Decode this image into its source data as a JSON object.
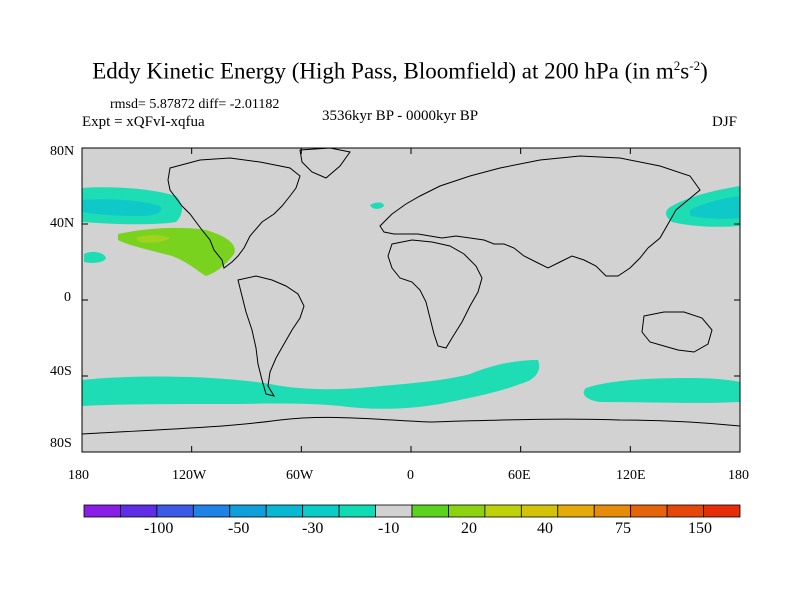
{
  "title": {
    "main": "Eddy Kinetic Energy (High Pass, Bloomfield) at 200 hPa (in m",
    "sup1": "2",
    "mid": "s",
    "sup2": "-2",
    "end": ")"
  },
  "stats": "rmsd= 5.87872 diff= -2.01182",
  "expt": "Expt = xQFvI-xqfua",
  "period": "3536kyr BP - 0000kyr BP",
  "season": "DJF",
  "lat_ticks": [
    "80N",
    "40N",
    "0",
    "40S",
    "80S"
  ],
  "lon_ticks": [
    "180",
    "120W",
    "60W",
    "0",
    "60E",
    "120E",
    "180"
  ],
  "colorbar": {
    "colors": [
      "#8a1ee6",
      "#5f2de6",
      "#3c5ae6",
      "#1e82e6",
      "#0fa0dc",
      "#08b8d2",
      "#08cdc8",
      "#0fdcb4",
      "#d2d2d2",
      "#5ad21e",
      "#8cd20f",
      "#bed20a",
      "#d2c30a",
      "#e6aa0a",
      "#e68c0a",
      "#e6640a",
      "#e6460a",
      "#e62d0a"
    ],
    "labels": [
      "-100",
      "-50",
      "-30",
      "-10",
      "20",
      "40",
      "75",
      "150"
    ]
  },
  "map_colors": {
    "ocean_bg": "#d2d2d2",
    "neg_light": "#1edcb4",
    "neg_mid": "#0fc8c8",
    "pos_light": "#78d21e",
    "pos_mid": "#a0d21e"
  }
}
